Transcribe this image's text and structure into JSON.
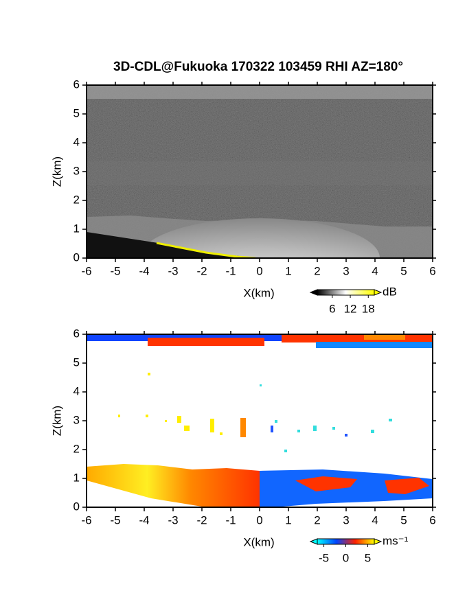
{
  "chart_data": [
    {
      "type": "rhi",
      "title": "3D-CDL@Fukuoka 170322 103459 RHI AZ=180°",
      "xlabel": "X(km)",
      "ylabel": "Z(km)",
      "xlim": [
        -6,
        6
      ],
      "xticks": [
        -6,
        -5,
        -4,
        -3,
        -2,
        -1,
        0,
        1,
        2,
        3,
        4,
        5,
        6
      ],
      "ylim": [
        0,
        6
      ],
      "yticks": [
        0,
        1,
        2,
        3,
        4,
        5,
        6
      ],
      "colorbar": {
        "unit": "dB",
        "clim": [
          1,
          20
        ],
        "ticks": [
          6,
          12,
          18
        ],
        "colors": [
          "#000000",
          "#ffffff",
          "#ffff00"
        ]
      }
    },
    {
      "type": "rhi",
      "xlabel": "X(km)",
      "ylabel": "Z(km)",
      "xlim": [
        -6,
        6
      ],
      "xticks": [
        -6,
        -5,
        -4,
        -3,
        -2,
        -1,
        0,
        1,
        2,
        3,
        4,
        5,
        6
      ],
      "ylim": [
        0,
        6
      ],
      "yticks": [
        0,
        1,
        2,
        3,
        4,
        5,
        6
      ],
      "colorbar": {
        "unit": "ms⁻¹",
        "clim": [
          -6.5,
          6.5
        ],
        "ticks": [
          -5,
          0,
          5
        ],
        "colors": [
          "#00ffff",
          "#0044ff",
          "#ff2200",
          "#ffff00"
        ]
      }
    }
  ]
}
